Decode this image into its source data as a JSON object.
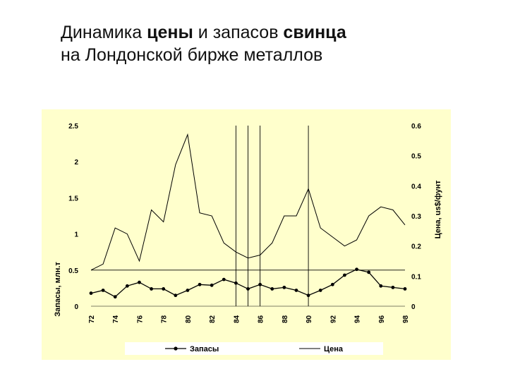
{
  "title": {
    "line1_part1": "Динамика ",
    "line1_bold1": "цены",
    "line1_part2": " и запасов ",
    "line1_bold2": "свинца",
    "line2": "на Лондонской бирже металлов"
  },
  "colors": {
    "plot_background": "#ffffcc",
    "legend_background": "#ffffff",
    "lines": "#000000"
  },
  "chart_data": {
    "type": "line",
    "categories": [
      "72",
      "73",
      "74",
      "75",
      "76",
      "77",
      "78",
      "79",
      "80",
      "81",
      "82",
      "83",
      "84",
      "85",
      "86",
      "87",
      "88",
      "89",
      "90",
      "91",
      "92",
      "93",
      "94",
      "95",
      "96",
      "97",
      "98"
    ],
    "x_tick_labels": [
      "72",
      "74",
      "76",
      "78",
      "80",
      "82",
      "84",
      "86",
      "88",
      "90",
      "92",
      "94",
      "96",
      "98"
    ],
    "y_left": {
      "label": "Запасы, млн.т",
      "ylim": [
        0,
        2.5
      ],
      "ticks": [
        "0",
        "0.5",
        "1",
        "1.5",
        "2",
        "2.5"
      ]
    },
    "y_right": {
      "label": "Цена, us$/фунт",
      "ylim": [
        0,
        0.6
      ],
      "ticks": [
        "0",
        "0.1",
        "0.2",
        "0.3",
        "0.4",
        "0.5",
        "0.6"
      ]
    },
    "series": [
      {
        "name": "Запасы",
        "axis": "left",
        "marker": "circle",
        "values": [
          0.18,
          0.22,
          0.13,
          0.28,
          0.33,
          0.24,
          0.24,
          0.15,
          0.22,
          0.3,
          0.29,
          0.37,
          0.32,
          0.24,
          0.3,
          0.24,
          0.26,
          0.22,
          0.15,
          0.22,
          0.3,
          0.43,
          0.51,
          0.47,
          0.28,
          0.26,
          0.24
        ]
      },
      {
        "name": "Цена",
        "axis": "right",
        "marker": "none",
        "values": [
          0.12,
          0.14,
          0.26,
          0.24,
          0.15,
          0.32,
          0.28,
          0.47,
          0.57,
          0.31,
          0.3,
          0.21,
          0.18,
          0.16,
          0.17,
          0.21,
          0.3,
          0.3,
          0.39,
          0.26,
          0.23,
          0.2,
          0.22,
          0.3,
          0.33,
          0.32,
          0.27
        ]
      }
    ],
    "reference_hline_left": 0.5,
    "reference_vlines_x": [
      84,
      85,
      86,
      90
    ],
    "grid": false,
    "legend_position": "bottom"
  }
}
